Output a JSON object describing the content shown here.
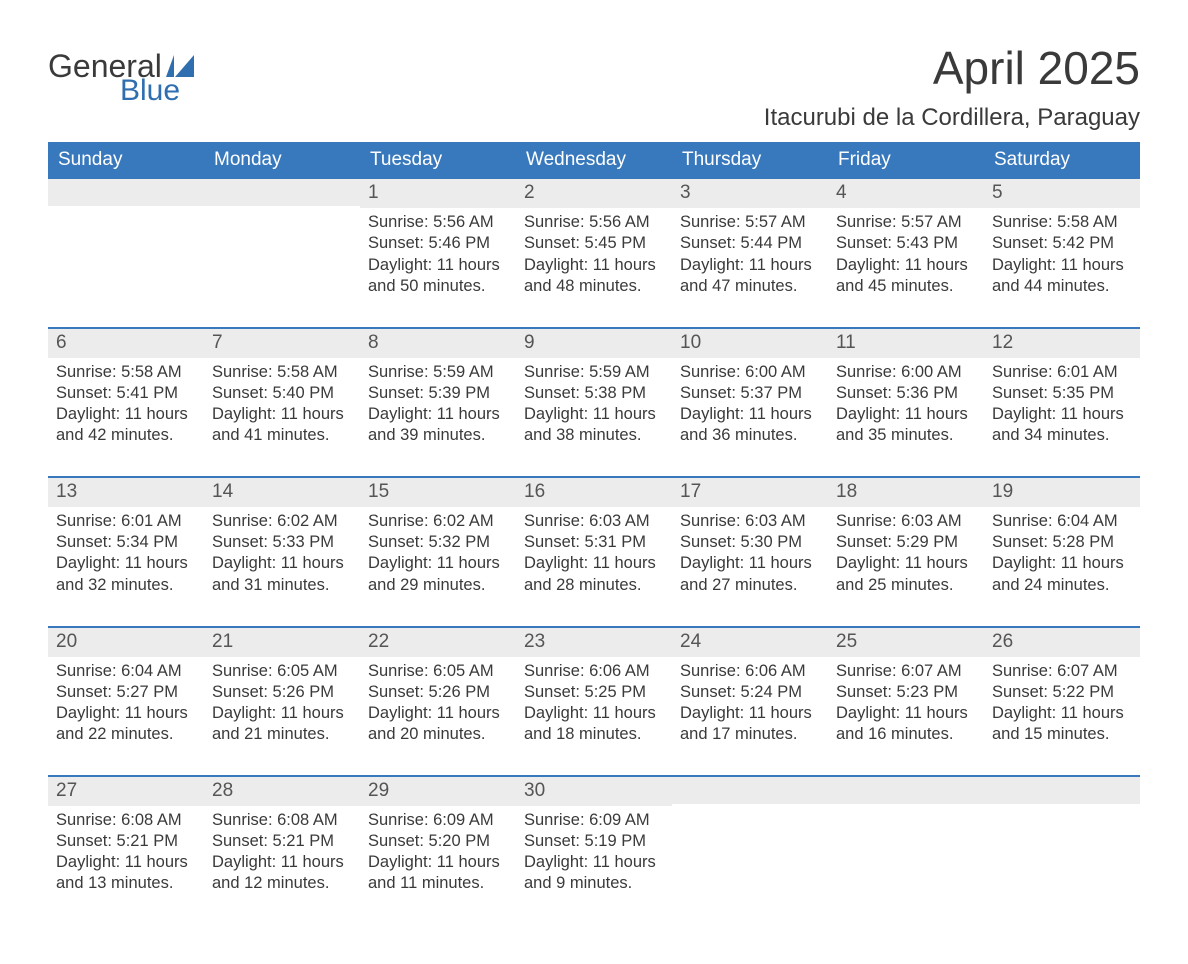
{
  "logo": {
    "text1": "General",
    "text2": "Blue",
    "accent_color": "#2f6fb0"
  },
  "title": "April 2025",
  "location": "Itacurubi de la Cordillera, Paraguay",
  "header_bg": "#3878bc",
  "header_fg": "#ffffff",
  "strip_bg": "#ececec",
  "text_color": "#3a3a3a",
  "weekdays": [
    "Sunday",
    "Monday",
    "Tuesday",
    "Wednesday",
    "Thursday",
    "Friday",
    "Saturday"
  ],
  "weeks": [
    [
      null,
      null,
      {
        "n": "1",
        "sr": "5:56 AM",
        "ss": "5:46 PM",
        "dl": "11 hours and 50 minutes."
      },
      {
        "n": "2",
        "sr": "5:56 AM",
        "ss": "5:45 PM",
        "dl": "11 hours and 48 minutes."
      },
      {
        "n": "3",
        "sr": "5:57 AM",
        "ss": "5:44 PM",
        "dl": "11 hours and 47 minutes."
      },
      {
        "n": "4",
        "sr": "5:57 AM",
        "ss": "5:43 PM",
        "dl": "11 hours and 45 minutes."
      },
      {
        "n": "5",
        "sr": "5:58 AM",
        "ss": "5:42 PM",
        "dl": "11 hours and 44 minutes."
      }
    ],
    [
      {
        "n": "6",
        "sr": "5:58 AM",
        "ss": "5:41 PM",
        "dl": "11 hours and 42 minutes."
      },
      {
        "n": "7",
        "sr": "5:58 AM",
        "ss": "5:40 PM",
        "dl": "11 hours and 41 minutes."
      },
      {
        "n": "8",
        "sr": "5:59 AM",
        "ss": "5:39 PM",
        "dl": "11 hours and 39 minutes."
      },
      {
        "n": "9",
        "sr": "5:59 AM",
        "ss": "5:38 PM",
        "dl": "11 hours and 38 minutes."
      },
      {
        "n": "10",
        "sr": "6:00 AM",
        "ss": "5:37 PM",
        "dl": "11 hours and 36 minutes."
      },
      {
        "n": "11",
        "sr": "6:00 AM",
        "ss": "5:36 PM",
        "dl": "11 hours and 35 minutes."
      },
      {
        "n": "12",
        "sr": "6:01 AM",
        "ss": "5:35 PM",
        "dl": "11 hours and 34 minutes."
      }
    ],
    [
      {
        "n": "13",
        "sr": "6:01 AM",
        "ss": "5:34 PM",
        "dl": "11 hours and 32 minutes."
      },
      {
        "n": "14",
        "sr": "6:02 AM",
        "ss": "5:33 PM",
        "dl": "11 hours and 31 minutes."
      },
      {
        "n": "15",
        "sr": "6:02 AM",
        "ss": "5:32 PM",
        "dl": "11 hours and 29 minutes."
      },
      {
        "n": "16",
        "sr": "6:03 AM",
        "ss": "5:31 PM",
        "dl": "11 hours and 28 minutes."
      },
      {
        "n": "17",
        "sr": "6:03 AM",
        "ss": "5:30 PM",
        "dl": "11 hours and 27 minutes."
      },
      {
        "n": "18",
        "sr": "6:03 AM",
        "ss": "5:29 PM",
        "dl": "11 hours and 25 minutes."
      },
      {
        "n": "19",
        "sr": "6:04 AM",
        "ss": "5:28 PM",
        "dl": "11 hours and 24 minutes."
      }
    ],
    [
      {
        "n": "20",
        "sr": "6:04 AM",
        "ss": "5:27 PM",
        "dl": "11 hours and 22 minutes."
      },
      {
        "n": "21",
        "sr": "6:05 AM",
        "ss": "5:26 PM",
        "dl": "11 hours and 21 minutes."
      },
      {
        "n": "22",
        "sr": "6:05 AM",
        "ss": "5:26 PM",
        "dl": "11 hours and 20 minutes."
      },
      {
        "n": "23",
        "sr": "6:06 AM",
        "ss": "5:25 PM",
        "dl": "11 hours and 18 minutes."
      },
      {
        "n": "24",
        "sr": "6:06 AM",
        "ss": "5:24 PM",
        "dl": "11 hours and 17 minutes."
      },
      {
        "n": "25",
        "sr": "6:07 AM",
        "ss": "5:23 PM",
        "dl": "11 hours and 16 minutes."
      },
      {
        "n": "26",
        "sr": "6:07 AM",
        "ss": "5:22 PM",
        "dl": "11 hours and 15 minutes."
      }
    ],
    [
      {
        "n": "27",
        "sr": "6:08 AM",
        "ss": "5:21 PM",
        "dl": "11 hours and 13 minutes."
      },
      {
        "n": "28",
        "sr": "6:08 AM",
        "ss": "5:21 PM",
        "dl": "11 hours and 12 minutes."
      },
      {
        "n": "29",
        "sr": "6:09 AM",
        "ss": "5:20 PM",
        "dl": "11 hours and 11 minutes."
      },
      {
        "n": "30",
        "sr": "6:09 AM",
        "ss": "5:19 PM",
        "dl": "11 hours and 9 minutes."
      },
      null,
      null,
      null
    ]
  ],
  "labels": {
    "sunrise": "Sunrise:",
    "sunset": "Sunset:",
    "daylight": "Daylight:"
  }
}
